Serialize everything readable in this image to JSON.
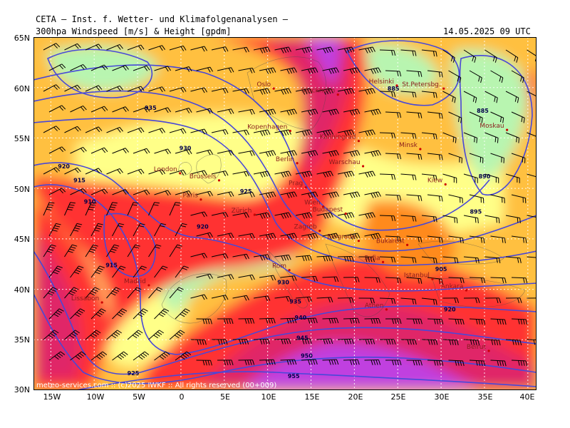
{
  "header": {
    "top_title": "CETA — Inst. f. Wetter- und Klimafolgenanalysen —",
    "param": "300hpa Windspeed [m/s] & Height [gpdm]",
    "datetime": "14.05.2025 09 UTC"
  },
  "axes": {
    "lat_labels": [
      "65N",
      "60N",
      "55N",
      "50N",
      "45N",
      "40N",
      "35N",
      "30N"
    ],
    "lon_labels": [
      "15W",
      "10W",
      "5W",
      "0",
      "5E",
      "10E",
      "15E",
      "20E",
      "25E",
      "30E",
      "35E",
      "40E"
    ]
  },
  "map": {
    "lon_range": [
      -17,
      41
    ],
    "lat_range": [
      30,
      65
    ],
    "cities": [
      {
        "name": "Oslo",
        "lon": 10.7,
        "lat": 59.9
      },
      {
        "name": "Stockholm",
        "lon": 18.1,
        "lat": 59.3
      },
      {
        "name": "Helsinki",
        "lon": 24.9,
        "lat": 60.2
      },
      {
        "name": "St.Petersbg.",
        "lon": 30.3,
        "lat": 59.9
      },
      {
        "name": "Moskau",
        "lon": 37.6,
        "lat": 55.8
      },
      {
        "name": "Kopenhagen",
        "lon": 12.6,
        "lat": 55.7
      },
      {
        "name": "Kaliningrad",
        "lon": 20.5,
        "lat": 54.7
      },
      {
        "name": "Minsk",
        "lon": 27.6,
        "lat": 53.9
      },
      {
        "name": "London",
        "lon": -0.1,
        "lat": 51.5
      },
      {
        "name": "Berlin",
        "lon": 13.4,
        "lat": 52.5
      },
      {
        "name": "Warschau",
        "lon": 21.0,
        "lat": 52.2
      },
      {
        "name": "Brüssels",
        "lon": 4.4,
        "lat": 50.8
      },
      {
        "name": "Kiew",
        "lon": 30.5,
        "lat": 50.4
      },
      {
        "name": "Paris",
        "lon": 2.3,
        "lat": 48.9
      },
      {
        "name": "Prag",
        "lon": 14.4,
        "lat": 50.1
      },
      {
        "name": "Wien",
        "lon": 16.4,
        "lat": 48.2
      },
      {
        "name": "Budapest",
        "lon": 19.0,
        "lat": 47.5
      },
      {
        "name": "Zürich",
        "lon": 8.5,
        "lat": 47.4
      },
      {
        "name": "Zagreb",
        "lon": 16.0,
        "lat": 45.8
      },
      {
        "name": "Belgrade",
        "lon": 20.5,
        "lat": 44.8
      },
      {
        "name": "Bukarest",
        "lon": 26.1,
        "lat": 44.4
      },
      {
        "name": "Rom",
        "lon": 12.5,
        "lat": 41.9
      },
      {
        "name": "Madrid",
        "lon": -3.7,
        "lat": 40.4
      },
      {
        "name": "Lissabon",
        "lon": -9.1,
        "lat": 38.7
      },
      {
        "name": "Sofia",
        "lon": 23.3,
        "lat": 42.7
      },
      {
        "name": "Istanbul",
        "lon": 29.0,
        "lat": 41.0
      },
      {
        "name": "Ankara",
        "lon": 32.9,
        "lat": 39.9
      },
      {
        "name": "Athen",
        "lon": 23.7,
        "lat": 38.0
      },
      {
        "name": "Beirut",
        "lon": 35.5,
        "lat": 33.9
      }
    ],
    "contour_labels": [
      {
        "text": "935",
        "lon": -3.5,
        "lat": 57.8
      },
      {
        "text": "930",
        "lon": 0.5,
        "lat": 53.8
      },
      {
        "text": "920",
        "lon": -13.5,
        "lat": 52.0
      },
      {
        "text": "915",
        "lon": -11.7,
        "lat": 50.6
      },
      {
        "text": "910",
        "lon": -10.5,
        "lat": 48.5
      },
      {
        "text": "915",
        "lon": -8.0,
        "lat": 42.2
      },
      {
        "text": "925",
        "lon": 7.5,
        "lat": 49.5
      },
      {
        "text": "920",
        "lon": 2.5,
        "lat": 46.0
      },
      {
        "text": "930",
        "lon": 11.8,
        "lat": 40.5
      },
      {
        "text": "935",
        "lon": 13.2,
        "lat": 38.6
      },
      {
        "text": "940",
        "lon": 13.8,
        "lat": 37.0
      },
      {
        "text": "945",
        "lon": 14.0,
        "lat": 35.0
      },
      {
        "text": "950",
        "lon": 14.5,
        "lat": 33.2
      },
      {
        "text": "955",
        "lon": 13.0,
        "lat": 31.2
      },
      {
        "text": "925",
        "lon": -5.5,
        "lat": 31.5
      },
      {
        "text": "885",
        "lon": 24.5,
        "lat": 59.7
      },
      {
        "text": "885",
        "lon": 34.8,
        "lat": 57.5
      },
      {
        "text": "890",
        "lon": 35.0,
        "lat": 51.0
      },
      {
        "text": "895",
        "lon": 34.0,
        "lat": 47.5
      },
      {
        "text": "905",
        "lon": 30.0,
        "lat": 41.8
      },
      {
        "text": "920",
        "lon": 31.0,
        "lat": 37.8
      }
    ]
  },
  "credit": "meteo-services.com :: (c)2025 IWKF :: All rights reserved (00+009)",
  "colors": {
    "calm": "#e6ffe0",
    "light": "#b8f5b0",
    "moderate": "#ffff88",
    "fresh": "#ffc040",
    "strong": "#ff8a1a",
    "jet": "#ff3333",
    "core": "#e02868",
    "max": "#c040e0",
    "contour": "#4848d8",
    "barb": "#000000"
  }
}
